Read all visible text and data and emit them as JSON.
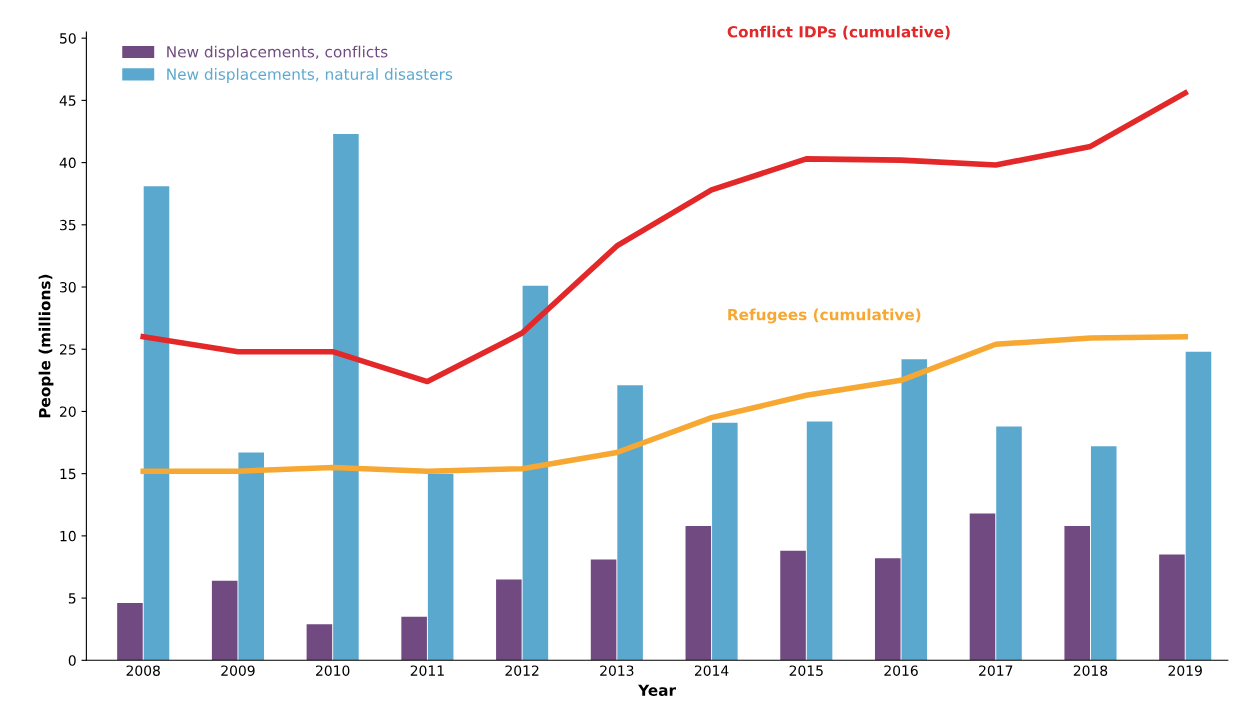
{
  "chart_data": {
    "type": "bar",
    "xlabel": "Year",
    "ylabel": "People (millions)",
    "categories": [
      "2008",
      "2009",
      "2010",
      "2011",
      "2012",
      "2013",
      "2014",
      "2015",
      "2016",
      "2017",
      "2018",
      "2019"
    ],
    "series": [
      {
        "name": "New displacements, conflicts",
        "color": "#714a81",
        "values": [
          4.6,
          6.4,
          2.9,
          3.5,
          6.5,
          8.1,
          10.8,
          8.8,
          8.2,
          11.8,
          10.8,
          8.5
        ]
      },
      {
        "name": "New displacements, natural disasters",
        "color": "#5ba8cf",
        "values": [
          38.1,
          16.7,
          42.3,
          15.0,
          30.1,
          22.1,
          19.1,
          19.2,
          24.2,
          18.8,
          17.2,
          24.8
        ]
      },
      {
        "name": "Conflict IDPs (cumulative)",
        "type": "line",
        "color": "#e3282a",
        "values": [
          26.0,
          24.8,
          24.8,
          22.4,
          26.3,
          33.3,
          37.8,
          40.3,
          40.2,
          39.8,
          41.3,
          45.6
        ]
      },
      {
        "name": "Refugees (cumulative)",
        "type": "line",
        "color": "#f6a833",
        "values": [
          15.2,
          15.2,
          15.5,
          15.2,
          15.4,
          16.7,
          19.5,
          21.3,
          22.5,
          25.4,
          25.9,
          26.0
        ]
      }
    ],
    "ylim": [
      0,
      50.5
    ],
    "yticks": [
      0,
      5,
      10,
      15,
      20,
      25,
      30,
      35,
      40,
      45,
      50
    ],
    "grid": false,
    "legend": "top left",
    "marker": "none",
    "line_style": "solid"
  }
}
